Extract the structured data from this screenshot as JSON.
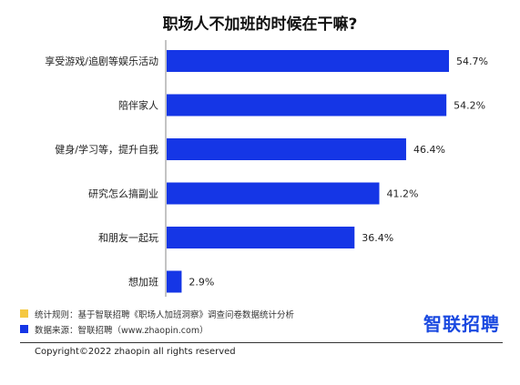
{
  "chart_data": {
    "type": "bar",
    "orientation": "horizontal",
    "title": "职场人不加班的时候在干嘛?",
    "categories": [
      "享受游戏/追剧等娱乐活动",
      "陪伴家人",
      "健身/学习等，提升自我",
      "研究怎么搞副业",
      "和朋友一起玩",
      "想加班"
    ],
    "values": [
      54.7,
      54.2,
      46.4,
      41.2,
      36.4,
      2.9
    ],
    "value_labels": [
      "54.7%",
      "54.2%",
      "46.4%",
      "41.2%",
      "36.4%",
      "2.9%"
    ],
    "unit": "%",
    "bar_color": "#1536e6",
    "xlim": [
      0,
      54.7
    ],
    "grid": false,
    "legend": "none"
  },
  "notes": {
    "rule": "统计规则：基于智联招聘《职场人加班洞察》调查问卷数据统计分析",
    "source": "数据来源：智联招聘（www.zhaopin.com）",
    "rule_color": "#f5c842",
    "source_color": "#1536e6"
  },
  "logo": "智联招聘",
  "logo_color": "#1a49e0",
  "copyright": "Copyright©2022 zhaopin all rights reserved"
}
